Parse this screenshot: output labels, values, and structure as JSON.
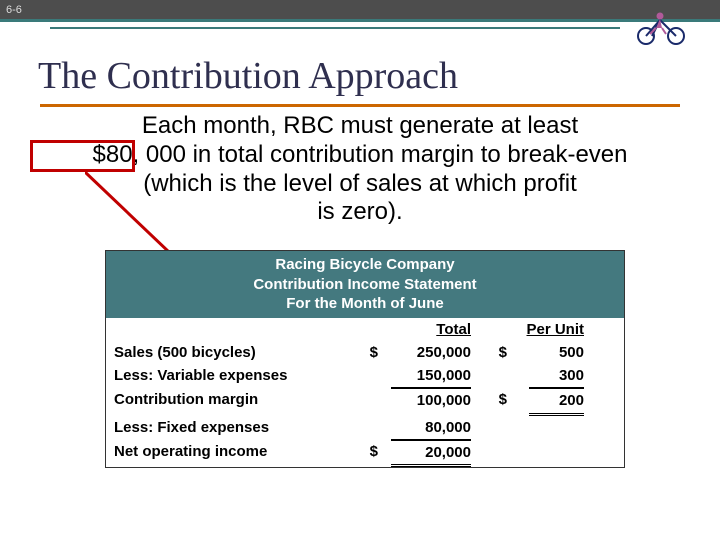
{
  "page_number": "6-6",
  "title": "The Contribution Approach",
  "body": {
    "line1": "Each month, RBC must generate at least",
    "highlight": "$80, 000",
    "line2_rest": "in total contribution margin to break-even",
    "line3": "(which is the level of sales at which profit",
    "line4": "is zero)."
  },
  "statement": {
    "header_line1": "Racing Bicycle Company",
    "header_line2": "Contribution Income Statement",
    "header_line3": "For the Month of June",
    "col_total": "Total",
    "col_unit": "Per Unit",
    "rows": [
      {
        "label": "Sales (500 bicycles)",
        "sym1": "$",
        "total": "250,000",
        "sym2": "$",
        "unit": "500",
        "rule": ""
      },
      {
        "label": "Less: Variable expenses",
        "sym1": "",
        "total": "150,000",
        "sym2": "",
        "unit": "300",
        "rule": "bottom"
      },
      {
        "label": "Contribution margin",
        "sym1": "",
        "total": "100,000",
        "sym2": "$",
        "unit": "200",
        "rule": "top-unit-dbl"
      },
      {
        "label": "Less: Fixed expenses",
        "sym1": "",
        "total": "80,000",
        "sym2": "",
        "unit": "",
        "rule": "bottom-total"
      },
      {
        "label": "Net operating income",
        "sym1": "$",
        "total": "20,000",
        "sym2": "",
        "unit": "",
        "rule": "top-total-dbl"
      }
    ]
  },
  "colors": {
    "header_bg": "#44797f",
    "title_underline": "#cc6600",
    "highlight_border": "#c00000",
    "arrow": "#c00000"
  }
}
